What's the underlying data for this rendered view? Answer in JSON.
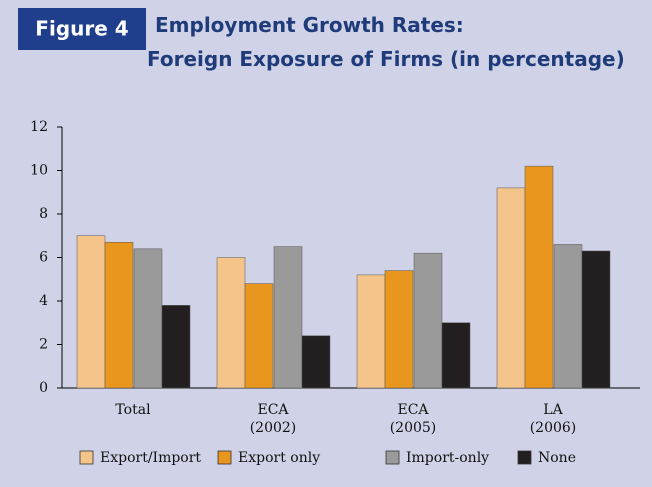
{
  "chart_data": {
    "type": "bar",
    "figure_label": "Figure 4",
    "title": [
      "Employment Growth Rates:",
      "Foreign Exposure of Firms (in percentage)"
    ],
    "categories": [
      "Total",
      "ECA (2002)",
      "ECA (2005)",
      "LA (2006)"
    ],
    "series": [
      {
        "name": "Export/Import",
        "color": "#f5c48a",
        "values": [
          7.0,
          6.0,
          5.2,
          9.2
        ]
      },
      {
        "name": "Export only",
        "color": "#e8961e",
        "values": [
          6.7,
          4.8,
          5.4,
          10.2
        ]
      },
      {
        "name": "Import-only",
        "color": "#9a9a9a",
        "values": [
          6.4,
          6.5,
          6.2,
          6.6
        ]
      },
      {
        "name": "None",
        "color": "#231f20",
        "values": [
          3.8,
          2.4,
          3.0,
          6.3
        ]
      }
    ],
    "ylim": [
      0,
      12
    ],
    "yticks": [
      0,
      2,
      4,
      6,
      8,
      10,
      12
    ],
    "legend": "bottom"
  }
}
